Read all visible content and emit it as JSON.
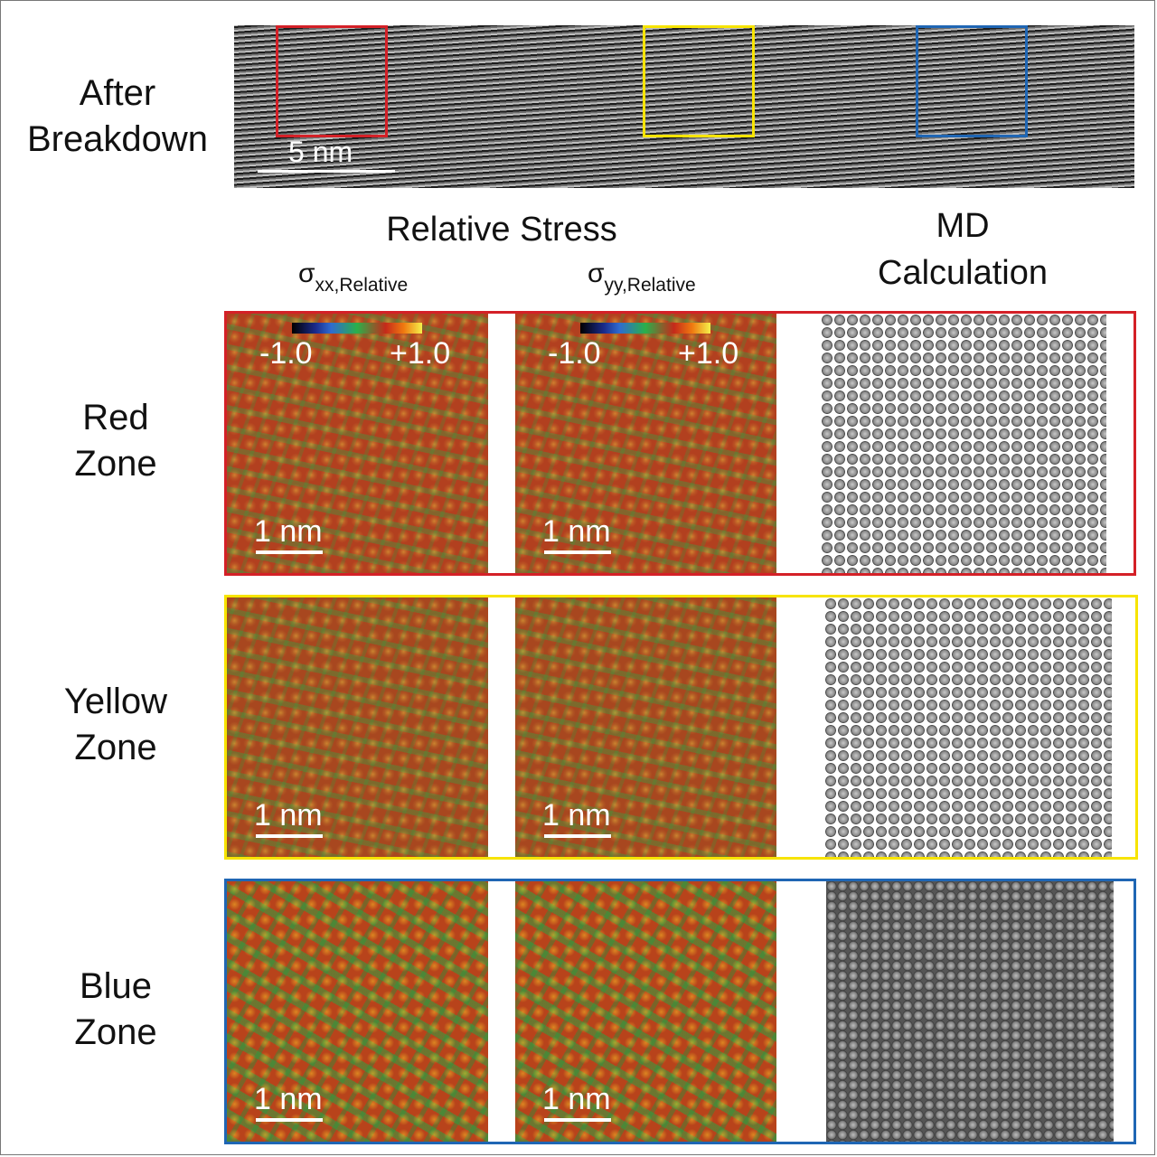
{
  "colors": {
    "red": "#d42027",
    "yellow": "#f7e400",
    "blue": "#1f66b4"
  },
  "top": {
    "row_label": [
      "After",
      "Breakdown"
    ],
    "scale_bar": "5 nm"
  },
  "headers": {
    "relative_stress": "Relative Stress",
    "md_calculation": [
      "MD",
      "Calculation"
    ],
    "sigma_xx": {
      "symbol": "σ",
      "subscript": "xx,Relative"
    },
    "sigma_yy": {
      "symbol": "σ",
      "subscript": "yy,Relative"
    }
  },
  "colorbar": {
    "min": "-1.0",
    "max": "+1.0"
  },
  "zones": [
    {
      "label": [
        "Red",
        "Zone"
      ],
      "color": "red",
      "scale_bar": "1 nm"
    },
    {
      "label": [
        "Yellow",
        "Zone"
      ],
      "color": "yellow",
      "scale_bar": "1 nm"
    },
    {
      "label": [
        "Blue",
        "Zone"
      ],
      "color": "blue",
      "scale_bar": "1 nm"
    }
  ]
}
